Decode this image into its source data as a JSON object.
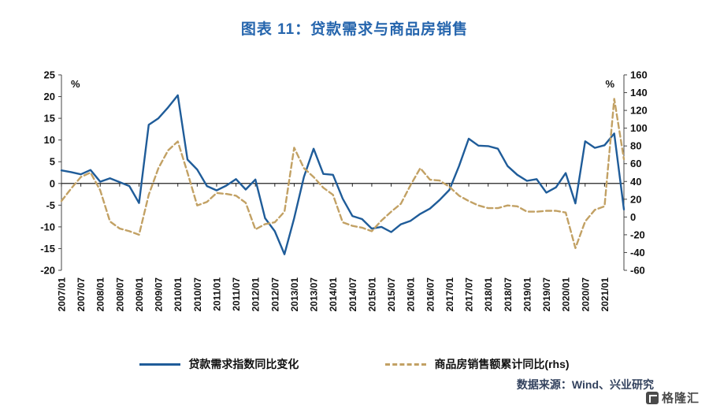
{
  "title": "图表 11：贷款需求与商品房销售",
  "source": "数据来源：Wind、兴业研究",
  "logo_text": "格隆汇",
  "colors": {
    "title_blue": "#2565ad",
    "line_blue": "#1f5c99",
    "line_tan": "#c2a164",
    "axis": "#444444",
    "zero_axis": "#222222",
    "source_text": "#33425e"
  },
  "axes": {
    "left_label": "%",
    "right_label": "%",
    "left_ticks": [
      25,
      20,
      15,
      10,
      5,
      0,
      -5,
      -10,
      -15,
      -20
    ],
    "right_ticks": [
      160,
      140,
      120,
      100,
      80,
      60,
      40,
      20,
      0,
      -20,
      -40,
      -60
    ]
  },
  "legend": [
    {
      "label": "贷款需求指数同比变化",
      "style": "solid"
    },
    {
      "label": "商品房销售额累计同比(rhs)",
      "style": "dashed"
    }
  ],
  "chart_data": {
    "type": "line",
    "title": "图表 11：贷款需求与商品房销售",
    "left_ylim": [
      -20,
      25
    ],
    "right_ylim": [
      -60,
      160
    ],
    "grid": false,
    "legend_position": "bottom",
    "x": [
      "2007/01",
      "2007/04",
      "2007/07",
      "2007/10",
      "2008/01",
      "2008/04",
      "2008/07",
      "2008/10",
      "2009/01",
      "2009/04",
      "2009/07",
      "2009/10",
      "2010/01",
      "2010/04",
      "2010/07",
      "2010/10",
      "2011/01",
      "2011/04",
      "2011/07",
      "2011/10",
      "2012/01",
      "2012/04",
      "2012/07",
      "2012/10",
      "2013/01",
      "2013/04",
      "2013/07",
      "2013/10",
      "2014/01",
      "2014/04",
      "2014/07",
      "2014/10",
      "2015/01",
      "2015/04",
      "2015/07",
      "2015/10",
      "2016/01",
      "2016/04",
      "2016/07",
      "2016/10",
      "2017/01",
      "2017/04",
      "2017/07",
      "2017/10",
      "2018/01",
      "2018/04",
      "2018/07",
      "2018/10",
      "2019/01",
      "2019/04",
      "2019/07",
      "2019/10",
      "2020/01",
      "2020/04",
      "2020/07",
      "2020/10",
      "2021/01",
      "2021/04",
      "2021/07"
    ],
    "x_tick_labels": [
      "2007/01",
      "2007/07",
      "2008/01",
      "2008/07",
      "2009/01",
      "2009/07",
      "2010/01",
      "2010/07",
      "2011/01",
      "2011/07",
      "2012/01",
      "2012/07",
      "2013/01",
      "2013/07",
      "2014/01",
      "2014/07",
      "2015/01",
      "2015/07",
      "2016/01",
      "2016/07",
      "2017/01",
      "2017/07",
      "2018/01",
      "2018/07",
      "2019/01",
      "2019/07",
      "2020/01",
      "2020/07",
      "2021/01"
    ],
    "series": [
      {
        "name": "贷款需求指数同比变化",
        "axis": "left",
        "style": "solid",
        "color": "#1f5c99",
        "unit": "%",
        "values": [
          3.0,
          2.6,
          2.1,
          3.1,
          0.4,
          1.2,
          0.3,
          -0.6,
          -4.5,
          13.5,
          15.0,
          17.5,
          20.3,
          5.5,
          3.2,
          -0.6,
          -1.6,
          -0.5,
          1.0,
          -1.4,
          0.9,
          -8.0,
          -11.0,
          -16.3,
          -8.0,
          1.5,
          8.0,
          2.2,
          2.0,
          -3.5,
          -7.5,
          -8.2,
          -10.4,
          -10.0,
          -11.2,
          -9.4,
          -8.6,
          -7.0,
          -5.8,
          -3.8,
          -1.5,
          4.0,
          10.3,
          8.7,
          8.6,
          8.0,
          4.0,
          2.0,
          0.6,
          1.0,
          -2.1,
          -0.9,
          2.4,
          -4.6,
          9.7,
          8.2,
          8.8,
          11.5,
          -6.0
        ]
      },
      {
        "name": "商品房销售额累计同比(rhs)",
        "axis": "right",
        "style": "dashed",
        "color": "#c2a164",
        "unit": "%",
        "values": [
          18,
          32,
          45,
          50,
          30,
          -5,
          -13,
          -16,
          -20,
          25,
          55,
          75,
          85,
          50,
          13,
          17,
          27,
          26,
          24,
          16,
          -14,
          -8,
          -6,
          6,
          78,
          55,
          45,
          33,
          25,
          -6,
          -10,
          -12,
          -16,
          -4,
          6,
          15,
          36,
          55,
          42,
          41,
          34,
          24,
          18,
          13,
          10,
          10,
          13,
          12,
          6,
          6,
          7,
          7,
          5,
          -35,
          -5,
          8,
          12,
          133,
          65
        ]
      }
    ]
  }
}
